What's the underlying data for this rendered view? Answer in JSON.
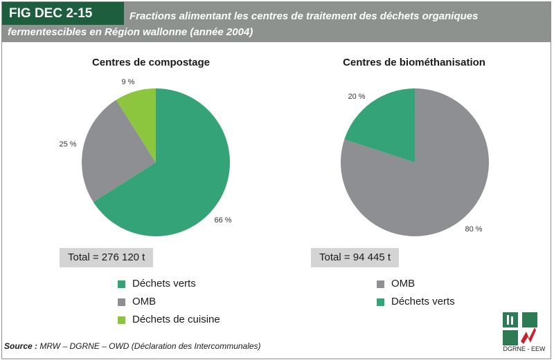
{
  "header": {
    "fig_label": "FIG DEC 2-15",
    "title_line1": "Fractions alimentant les centres de traitement des déchets organiques",
    "title_line2": "fermentescibles en Région wallonne (année 2004)"
  },
  "colors": {
    "header_bg": "#8d928f",
    "fig_label_bg": "#1d5e3e",
    "dechets_verts": "#34a377",
    "omb": "#8e8f93",
    "dechets_de_cuisine": "#8cc63f",
    "total_bg": "#d3d4d3"
  },
  "chart_data": [
    {
      "type": "pie",
      "title": "Centres de compostage",
      "slices": [
        {
          "label": "Déchets verts",
          "value": 66,
          "pct_label": "66 %",
          "color": "#34a377"
        },
        {
          "label": "OMB",
          "value": 25,
          "pct_label": "25 %",
          "color": "#8e8f93"
        },
        {
          "label": "Déchets de cuisine",
          "value": 9,
          "pct_label": "9 %",
          "color": "#8cc63f"
        }
      ],
      "total": "Total = 276 120 t",
      "legend": [
        "Déchets verts",
        "OMB",
        "Déchets de cuisine"
      ]
    },
    {
      "type": "pie",
      "title": "Centres de biométhanisation",
      "slices": [
        {
          "label": "OMB",
          "value": 80,
          "pct_label": "80 %",
          "color": "#8e8f93"
        },
        {
          "label": "Déchets verts",
          "value": 20,
          "pct_label": "20 %",
          "color": "#34a377"
        }
      ],
      "total": "Total = 94 445 t",
      "legend": [
        "OMB",
        "Déchets verts"
      ]
    }
  ],
  "source": {
    "label": "Source :",
    "text": "MRW – DGRNE – OWD (Déclaration des Intercommunales)"
  },
  "logo": {
    "caption": "DGRNE - EEW"
  }
}
